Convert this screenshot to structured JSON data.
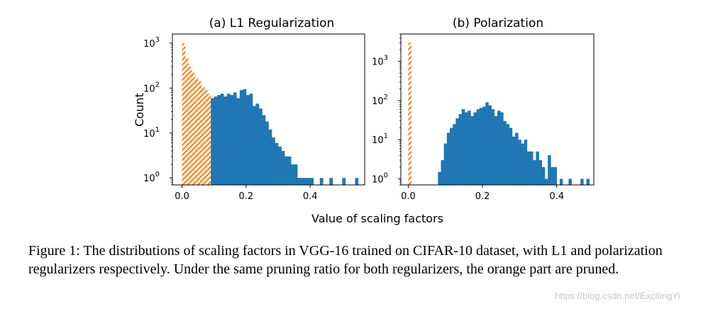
{
  "figure": {
    "xlabel": "Value of scaling factors",
    "caption": "Figure 1: The distributions of scaling factors in VGG-16 trained on CIFAR-10 dataset, with L1 and polarization regularizers respectively. Under the same pruning ratio for both regularizers, the orange part are pruned.",
    "watermark": "https://blog.csdn.net/ExcitingYi"
  },
  "colors": {
    "kept": "#1f77b4",
    "pruned": "#ff7f0e"
  },
  "chart_data": [
    {
      "type": "bar",
      "title": "(a) L1 Regularization",
      "ylabel": "Count",
      "xlabel": "Value of scaling factors",
      "yscale": "log",
      "xlim": [
        -0.03,
        0.57
      ],
      "ylim": [
        0.7,
        1600
      ],
      "xticks": [
        0.0,
        0.2,
        0.4
      ],
      "xtick_labels": [
        "0.0",
        "0.2",
        "0.4"
      ],
      "yticks": [
        1,
        10,
        100,
        1000
      ],
      "ytick_labels": [
        "10^0",
        "10^1",
        "10^2",
        "10^3"
      ],
      "bin_width": 0.01,
      "series": [
        {
          "role": "pruned",
          "style": "hatched",
          "x": [
            0.0,
            0.01,
            0.02,
            0.03,
            0.04,
            0.05,
            0.06,
            0.07,
            0.08
          ],
          "values": [
            1000,
            450,
            300,
            220,
            170,
            140,
            110,
            90,
            75
          ]
        },
        {
          "role": "kept",
          "style": "solid",
          "x": [
            0.09,
            0.1,
            0.11,
            0.12,
            0.13,
            0.14,
            0.15,
            0.16,
            0.17,
            0.18,
            0.19,
            0.2,
            0.21,
            0.22,
            0.23,
            0.24,
            0.25,
            0.26,
            0.27,
            0.28,
            0.29,
            0.3,
            0.31,
            0.32,
            0.33,
            0.34,
            0.35,
            0.36,
            0.37,
            0.38,
            0.39,
            0.4,
            0.43,
            0.46,
            0.5,
            0.54
          ],
          "values": [
            60,
            65,
            70,
            75,
            65,
            75,
            70,
            80,
            60,
            90,
            95,
            70,
            75,
            40,
            45,
            35,
            25,
            18,
            12,
            8,
            6,
            5,
            4,
            3,
            3,
            2,
            2,
            1,
            1,
            1,
            1,
            1,
            1,
            1,
            1,
            1
          ]
        }
      ]
    },
    {
      "type": "bar",
      "title": "(b) Polarization",
      "ylabel": "",
      "xlabel": "Value of scaling factors",
      "yscale": "log",
      "xlim": [
        -0.02,
        0.5
      ],
      "ylim": [
        0.7,
        5000
      ],
      "xticks": [
        0.0,
        0.2,
        0.4
      ],
      "xtick_labels": [
        "0.0",
        "0.2",
        "0.4"
      ],
      "yticks": [
        1,
        10,
        100,
        1000
      ],
      "ytick_labels": [
        "10^0",
        "10^1",
        "10^2",
        "10^3"
      ],
      "bin_width": 0.008,
      "series": [
        {
          "role": "pruned",
          "style": "hatched",
          "x": [
            0.0
          ],
          "values": [
            3000
          ]
        },
        {
          "role": "kept",
          "style": "solid",
          "x": [
            0.08,
            0.088,
            0.096,
            0.104,
            0.112,
            0.12,
            0.128,
            0.136,
            0.144,
            0.152,
            0.16,
            0.168,
            0.176,
            0.184,
            0.192,
            0.2,
            0.208,
            0.216,
            0.224,
            0.232,
            0.24,
            0.248,
            0.256,
            0.264,
            0.272,
            0.28,
            0.288,
            0.296,
            0.304,
            0.312,
            0.32,
            0.328,
            0.336,
            0.344,
            0.352,
            0.36,
            0.368,
            0.376,
            0.384,
            0.392,
            0.408,
            0.432,
            0.464,
            0.48
          ],
          "values": [
            1.5,
            3,
            8,
            15,
            20,
            25,
            35,
            45,
            60,
            50,
            55,
            40,
            50,
            60,
            65,
            70,
            90,
            75,
            60,
            40,
            55,
            50,
            30,
            25,
            20,
            12,
            15,
            10,
            8,
            10,
            5,
            5,
            3,
            5,
            3,
            2,
            1,
            4,
            2,
            2,
            1,
            1,
            1,
            1
          ]
        }
      ]
    }
  ]
}
